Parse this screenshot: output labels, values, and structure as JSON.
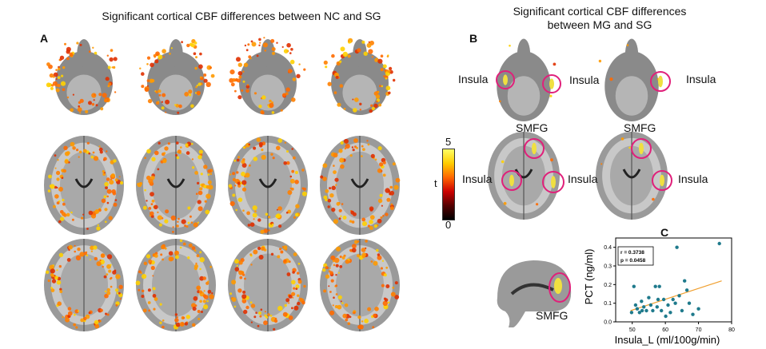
{
  "panel_a": {
    "letter": "A",
    "title": "Significant cortical CBF differences between NC and SG"
  },
  "panel_b": {
    "letter": "B",
    "title_line1": "Significant cortical CBF differences",
    "title_line2": "between MG and SG",
    "labels": {
      "insula": "Insula",
      "smfg": "SMFG"
    }
  },
  "colorbar": {
    "max_label": "5",
    "min_label": "0",
    "axis_label": "t",
    "colors": [
      "#ffff66",
      "#ffcc00",
      "#ff6600",
      "#cc0000",
      "#550000",
      "#000000"
    ]
  },
  "panel_c": {
    "letter": "C",
    "sagittal_label": "SMFG"
  },
  "chart_data": {
    "type": "scatter",
    "xlabel": "Insula_L (ml/100g/min)",
    "ylabel": "PCT (ng/ml)",
    "xlim": [
      45,
      80
    ],
    "ylim": [
      0,
      0.45
    ],
    "xticks": [
      "50",
      "60",
      "70",
      "80"
    ],
    "yticks": [
      "0.0",
      "0.1",
      "0.2",
      "0.3",
      "0.4"
    ],
    "annotation_r": "r = 0.3738",
    "annotation_p": "p = 0.0458",
    "point_color": "#1f7a8c",
    "line_color": "#f0a030",
    "x": [
      49.8,
      50.5,
      51.5,
      52.2,
      52.8,
      53.5,
      54.3,
      55.0,
      55.6,
      56.2,
      57.0,
      57.5,
      58.2,
      58.8,
      59.5,
      60.1,
      60.8,
      61.5,
      62.3,
      63.0,
      63.5,
      64.2,
      65.0,
      65.8,
      66.5,
      67.2,
      68.3,
      70.0,
      76.3,
      51.0,
      53.0,
      57.8
    ],
    "y": [
      0.05,
      0.19,
      0.07,
      0.05,
      0.11,
      0.08,
      0.06,
      0.13,
      0.09,
      0.06,
      0.19,
      0.08,
      0.19,
      0.06,
      0.12,
      0.03,
      0.09,
      0.05,
      0.12,
      0.1,
      0.4,
      0.14,
      0.06,
      0.22,
      0.17,
      0.1,
      0.04,
      0.07,
      0.42,
      0.09,
      0.06,
      0.12
    ],
    "fit_line": {
      "x": [
        49.5,
        77.0
      ],
      "y": [
        0.06,
        0.22
      ]
    }
  }
}
